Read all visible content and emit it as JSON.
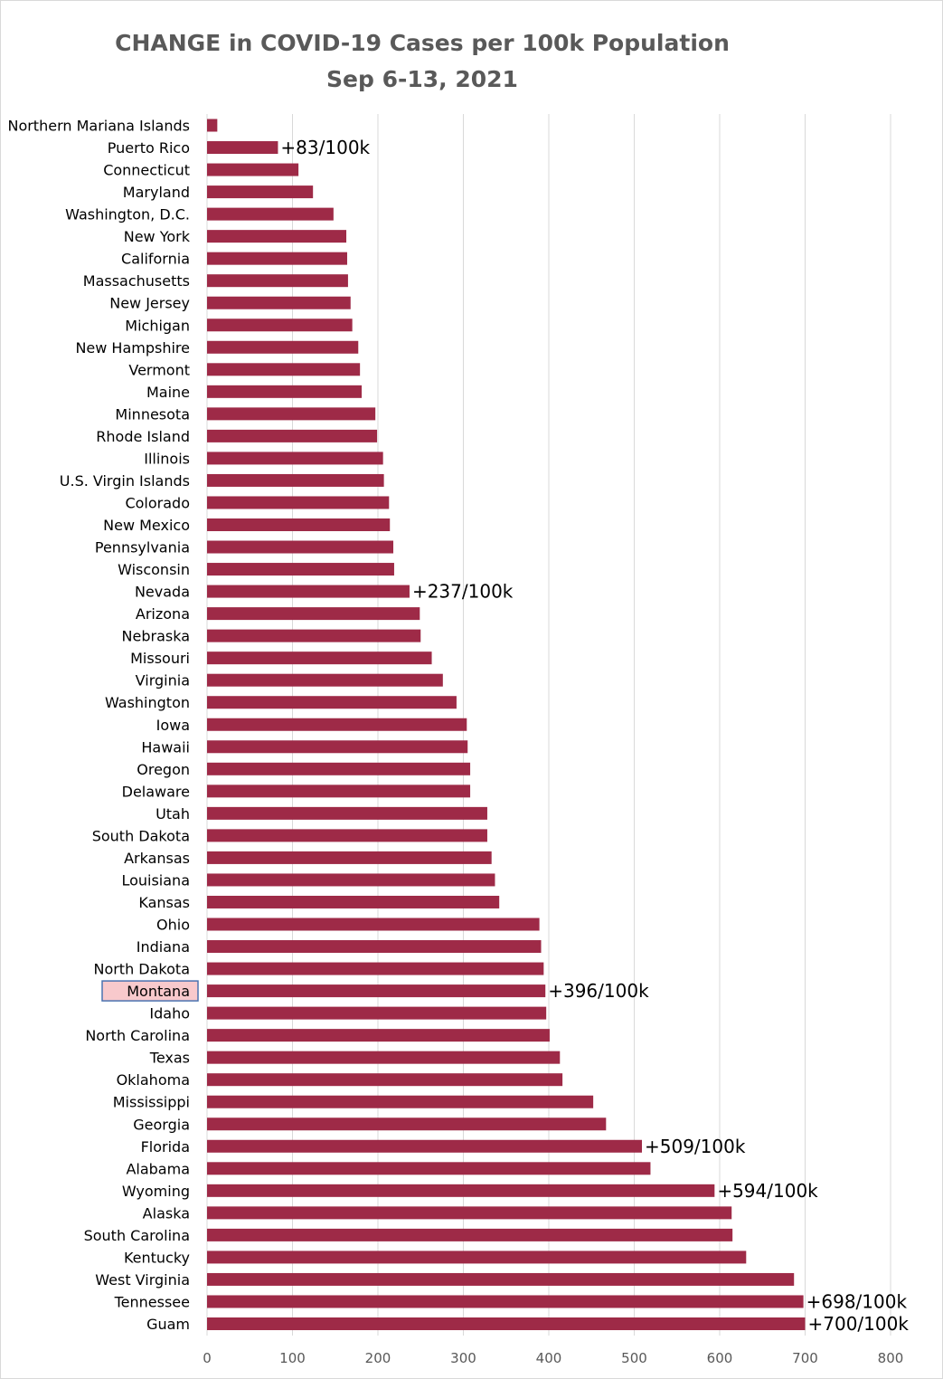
{
  "chart_data": {
    "type": "bar",
    "orientation": "horizontal",
    "title": "CHANGE in COVID-19 Cases per 100k Population",
    "subtitle": "Sep 6-13, 2021",
    "xlabel": "",
    "ylabel": "",
    "xlim": [
      0,
      800
    ],
    "xticks": [
      0,
      100,
      200,
      300,
      400,
      500,
      600,
      700,
      800
    ],
    "grid": true,
    "bar_color": "#9e2a47",
    "highlight_color": "#f8c9cc",
    "highlight_border": "#4a72b0",
    "highlight_category": "Montana",
    "categories": [
      "Northern Mariana Islands",
      "Puerto Rico",
      "Connecticut",
      "Maryland",
      "Washington, D.C.",
      "New York",
      "California",
      "Massachusetts",
      "New Jersey",
      "Michigan",
      "New Hampshire",
      "Vermont",
      "Maine",
      "Minnesota",
      "Rhode Island",
      "Illinois",
      "U.S. Virgin Islands",
      "Colorado",
      "New Mexico",
      "Pennsylvania",
      "Wisconsin",
      "Nevada",
      "Arizona",
      "Nebraska",
      "Missouri",
      "Virginia",
      "Washington",
      "Iowa",
      "Hawaii",
      "Oregon",
      "Delaware",
      "Utah",
      "South Dakota",
      "Arkansas",
      "Louisiana",
      "Kansas",
      "Ohio",
      "Indiana",
      "North Dakota",
      "Montana",
      "Idaho",
      "North Carolina",
      "Texas",
      "Oklahoma",
      "Mississippi",
      "Georgia",
      "Florida",
      "Alabama",
      "Wyoming",
      "Alaska",
      "South Carolina",
      "Kentucky",
      "West Virginia",
      "Tennessee",
      "Guam"
    ],
    "values": [
      12,
      83,
      107,
      124,
      148,
      163,
      164,
      165,
      168,
      170,
      177,
      179,
      181,
      197,
      199,
      206,
      207,
      213,
      214,
      218,
      219,
      237,
      249,
      250,
      263,
      276,
      292,
      304,
      305,
      308,
      308,
      328,
      328,
      333,
      337,
      342,
      389,
      391,
      394,
      396,
      397,
      401,
      413,
      416,
      452,
      467,
      509,
      519,
      594,
      614,
      615,
      631,
      687,
      698,
      700
    ],
    "annotations": [
      {
        "category": "Puerto Rico",
        "text": "+83/100k"
      },
      {
        "category": "Nevada",
        "text": "+237/100k"
      },
      {
        "category": "Montana",
        "text": "+396/100k"
      },
      {
        "category": "Florida",
        "text": "+509/100k"
      },
      {
        "category": "Wyoming",
        "text": "+594/100k"
      },
      {
        "category": "Tennessee",
        "text": "+698/100k"
      },
      {
        "category": "Guam",
        "text": "+700/100k"
      }
    ]
  }
}
